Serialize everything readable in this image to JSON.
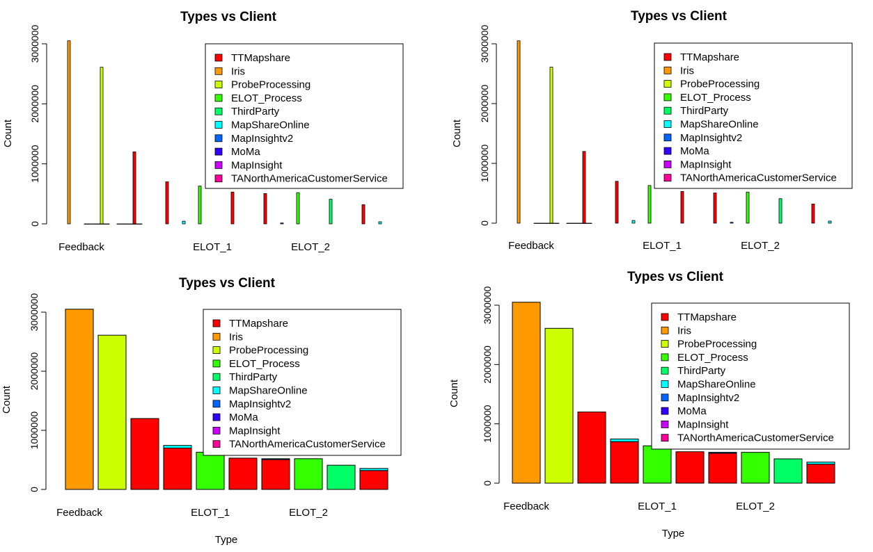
{
  "legend_labels": [
    "TTMapshare",
    "Iris",
    "ProbeProcessing",
    "ELOT_Process",
    "ThirdParty",
    "MapShareOnline",
    "MapInsightv2",
    "MoMa",
    "MapInsight",
    "TANorthAmericaCustomerService"
  ],
  "colors": {
    "TTMapshare": "#FF0000",
    "Iris": "#FF9900",
    "ProbeProcessing": "#CCFF00",
    "ELOT_Process": "#33FF00",
    "ThirdParty": "#00FF66",
    "MapShareOnline": "#00FFFF",
    "MapInsightv2": "#0066FF",
    "MoMa": "#3300FF",
    "MapInsight": "#CC00FF",
    "TANorthAmericaCustomerService": "#FF0099"
  },
  "chart_data": [
    {
      "type": "bar",
      "mode": "grouped",
      "title": "Types vs Client",
      "ylabel": "Count",
      "xlabel": "",
      "ylim": [
        0,
        3000000
      ],
      "yticks": [
        0,
        1000000,
        2000000,
        3000000
      ],
      "ytick_labels": [
        "0",
        "1000000",
        "2000000",
        "3000000"
      ],
      "categories": [
        "Feedback",
        "",
        "",
        "",
        "ELOT_1",
        "",
        "",
        "ELOT_2",
        "",
        ""
      ],
      "bars": [
        {
          "category": 0,
          "series": "Iris",
          "value": 3050000
        },
        {
          "category": 0,
          "series": "TTMapshare",
          "value": 0
        },
        {
          "category": 1,
          "series": "ProbeProcessing",
          "value": 2610000
        },
        {
          "category": 1,
          "series": "TTMapshare",
          "value": 0
        },
        {
          "category": 2,
          "series": "TTMapshare",
          "value": 1200000
        },
        {
          "category": 3,
          "series": "TTMapshare",
          "value": 700000
        },
        {
          "category": 3,
          "series": "MapShareOnline",
          "value": 45000
        },
        {
          "category": 4,
          "series": "ELOT_Process",
          "value": 630000
        },
        {
          "category": 5,
          "series": "TTMapshare",
          "value": 530000
        },
        {
          "category": 6,
          "series": "TTMapshare",
          "value": 505000
        },
        {
          "category": 6,
          "series": "MapInsightv2",
          "value": 15000
        },
        {
          "category": 7,
          "series": "ELOT_Process",
          "value": 520000
        },
        {
          "category": 8,
          "series": "ThirdParty",
          "value": 410000
        },
        {
          "category": 9,
          "series": "TTMapshare",
          "value": 320000
        },
        {
          "category": 9,
          "series": "MapShareOnline",
          "value": 35000
        }
      ]
    },
    {
      "type": "bar",
      "mode": "grouped",
      "title": "Types vs Client",
      "ylabel": "Count",
      "xlabel": "",
      "ylim": [
        0,
        3000000
      ],
      "yticks": [
        0,
        1000000,
        2000000,
        3000000
      ],
      "ytick_labels": [
        "0",
        "1000000",
        "2000000",
        "3000000"
      ],
      "categories": [
        "Feedback",
        "",
        "",
        "",
        "ELOT_1",
        "",
        "",
        "ELOT_2",
        "",
        ""
      ],
      "bars": [
        {
          "category": 0,
          "series": "Iris",
          "value": 3050000
        },
        {
          "category": 0,
          "series": "TTMapshare",
          "value": 0
        },
        {
          "category": 1,
          "series": "ProbeProcessing",
          "value": 2610000
        },
        {
          "category": 1,
          "series": "TTMapshare",
          "value": 0
        },
        {
          "category": 2,
          "series": "TTMapshare",
          "value": 1200000
        },
        {
          "category": 3,
          "series": "TTMapshare",
          "value": 700000
        },
        {
          "category": 3,
          "series": "MapShareOnline",
          "value": 45000
        },
        {
          "category": 4,
          "series": "ELOT_Process",
          "value": 630000
        },
        {
          "category": 5,
          "series": "TTMapshare",
          "value": 530000
        },
        {
          "category": 6,
          "series": "TTMapshare",
          "value": 505000
        },
        {
          "category": 6,
          "series": "MapInsightv2",
          "value": 15000
        },
        {
          "category": 7,
          "series": "ELOT_Process",
          "value": 520000
        },
        {
          "category": 8,
          "series": "ThirdParty",
          "value": 410000
        },
        {
          "category": 9,
          "series": "TTMapshare",
          "value": 320000
        },
        {
          "category": 9,
          "series": "MapShareOnline",
          "value": 35000
        }
      ]
    },
    {
      "type": "bar",
      "mode": "stacked",
      "title": "Types vs Client",
      "ylabel": "Count",
      "xlabel": "Type",
      "ylim": [
        0,
        3000000
      ],
      "yticks": [
        0,
        1000000,
        2000000,
        3000000
      ],
      "ytick_labels": [
        "0",
        "1000000",
        "2000000",
        "3000000"
      ],
      "categories": [
        "Feedback",
        "",
        "",
        "",
        "ELOT_1",
        "",
        "",
        "ELOT_2",
        "",
        ""
      ],
      "bars": [
        {
          "category": 0,
          "segments": [
            {
              "series": "Iris",
              "value": 3050000
            }
          ]
        },
        {
          "category": 1,
          "segments": [
            {
              "series": "ProbeProcessing",
              "value": 2610000
            }
          ]
        },
        {
          "category": 2,
          "segments": [
            {
              "series": "TTMapshare",
              "value": 1200000
            }
          ]
        },
        {
          "category": 3,
          "segments": [
            {
              "series": "TTMapshare",
              "value": 700000
            },
            {
              "series": "MapShareOnline",
              "value": 45000
            }
          ]
        },
        {
          "category": 4,
          "segments": [
            {
              "series": "ELOT_Process",
              "value": 630000
            }
          ]
        },
        {
          "category": 5,
          "segments": [
            {
              "series": "TTMapshare",
              "value": 530000
            }
          ]
        },
        {
          "category": 6,
          "segments": [
            {
              "series": "TTMapshare",
              "value": 505000
            },
            {
              "series": "MapInsightv2",
              "value": 15000
            }
          ]
        },
        {
          "category": 7,
          "segments": [
            {
              "series": "ELOT_Process",
              "value": 520000
            }
          ]
        },
        {
          "category": 8,
          "segments": [
            {
              "series": "ThirdParty",
              "value": 410000
            }
          ]
        },
        {
          "category": 9,
          "segments": [
            {
              "series": "TTMapshare",
              "value": 320000
            },
            {
              "series": "MapShareOnline",
              "value": 35000
            }
          ]
        }
      ]
    },
    {
      "type": "bar",
      "mode": "stacked",
      "title": "Types vs Client",
      "ylabel": "Count",
      "xlabel": "Type",
      "ylim": [
        0,
        3000000
      ],
      "yticks": [
        0,
        1000000,
        2000000,
        3000000
      ],
      "ytick_labels": [
        "0",
        "1000000",
        "2000000",
        "3000000"
      ],
      "categories": [
        "Feedback",
        "",
        "",
        "",
        "ELOT_1",
        "",
        "",
        "ELOT_2",
        "",
        ""
      ],
      "bars": [
        {
          "category": 0,
          "segments": [
            {
              "series": "Iris",
              "value": 3050000
            }
          ]
        },
        {
          "category": 1,
          "segments": [
            {
              "series": "ProbeProcessing",
              "value": 2610000
            }
          ]
        },
        {
          "category": 2,
          "segments": [
            {
              "series": "TTMapshare",
              "value": 1200000
            }
          ]
        },
        {
          "category": 3,
          "segments": [
            {
              "series": "TTMapshare",
              "value": 700000
            },
            {
              "series": "MapShareOnline",
              "value": 45000
            }
          ]
        },
        {
          "category": 4,
          "segments": [
            {
              "series": "ELOT_Process",
              "value": 630000
            }
          ]
        },
        {
          "category": 5,
          "segments": [
            {
              "series": "TTMapshare",
              "value": 530000
            }
          ]
        },
        {
          "category": 6,
          "segments": [
            {
              "series": "TTMapshare",
              "value": 505000
            },
            {
              "series": "MapInsightv2",
              "value": 15000
            }
          ]
        },
        {
          "category": 7,
          "segments": [
            {
              "series": "ELOT_Process",
              "value": 520000
            }
          ]
        },
        {
          "category": 8,
          "segments": [
            {
              "series": "ThirdParty",
              "value": 410000
            }
          ]
        },
        {
          "category": 9,
          "segments": [
            {
              "series": "TTMapshare",
              "value": 320000
            },
            {
              "series": "MapShareOnline",
              "value": 35000
            }
          ]
        }
      ]
    }
  ]
}
